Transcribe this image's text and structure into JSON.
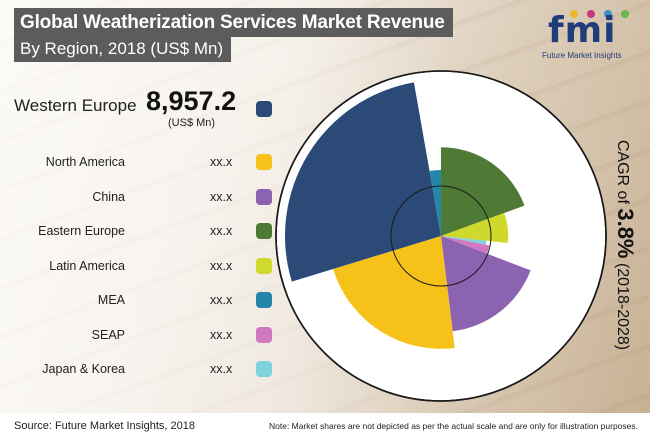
{
  "header": {
    "title": "Global Weatherization Services Market Revenue",
    "subtitle": "By Region, 2018 (US$ Mn)"
  },
  "logo": {
    "word": "fmi",
    "tagline": "Future Market Insights",
    "dot_colors": [
      "#e9b62c",
      "#c8377e",
      "#3c8dc8",
      "#6bb34a"
    ]
  },
  "lead": {
    "label": "Western Europe",
    "value": "8,957.2",
    "unit": "(US$ Mn)",
    "color": "#2b4a78"
  },
  "legend": [
    {
      "label": "North America",
      "value": "xx.x",
      "color": "#f6c21a"
    },
    {
      "label": "China",
      "value": "xx.x",
      "color": "#8b63b0"
    },
    {
      "label": "Eastern Europe",
      "value": "xx.x",
      "color": "#4f7a36"
    },
    {
      "label": "Latin America",
      "value": "xx.x",
      "color": "#cfd92b"
    },
    {
      "label": "MEA",
      "value": "xx.x",
      "color": "#2487a8"
    },
    {
      "label": "SEAP",
      "value": "xx.x",
      "color": "#cf79c3"
    },
    {
      "label": "Japan & Korea",
      "value": "xx.x",
      "color": "#7fd3dc"
    }
  ],
  "chart_data": {
    "type": "polar-area",
    "title": "Global Weatherization Services Market Revenue",
    "subtitle": "By Region, 2018 (US$ Mn)",
    "unit": "US$ Mn",
    "segments": [
      {
        "name": "Eastern Europe",
        "value": "xx.x",
        "angle_deg": 70,
        "relative_radius": 0.74,
        "color": "#4f7a36"
      },
      {
        "name": "Latin America",
        "value": "xx.x",
        "angle_deg": 26,
        "relative_radius": 0.56,
        "color": "#cfd92b"
      },
      {
        "name": "Japan & Korea",
        "value": "xx.x",
        "angle_deg": 5,
        "relative_radius": 0.38,
        "color": "#7fd3dc"
      },
      {
        "name": "SEAP",
        "value": "xx.x",
        "angle_deg": 10,
        "relative_radius": 0.41,
        "color": "#cf79c3"
      },
      {
        "name": "China",
        "value": "xx.x",
        "angle_deg": 62,
        "relative_radius": 0.8,
        "color": "#8b63b0"
      },
      {
        "name": "North America",
        "value": "xx.x",
        "angle_deg": 80,
        "relative_radius": 0.94,
        "color": "#f6c21a"
      },
      {
        "name": "Western Europe",
        "value": "8,957.2",
        "angle_deg": 97,
        "relative_radius": 1.3,
        "color": "#2b4a78"
      },
      {
        "name": "MEA",
        "value": "xx.x",
        "angle_deg": 10,
        "relative_radius": 0.55,
        "color": "#2487a8"
      }
    ]
  },
  "cagr": {
    "prefix": "CAGR of ",
    "value": "3.8%",
    "period": " (2018-2028)"
  },
  "footer": {
    "source": "Source: Future Market Insights, 2018",
    "note": "Note: Market shares are not depicted as per the actual scale and are only for illustration purposes."
  }
}
